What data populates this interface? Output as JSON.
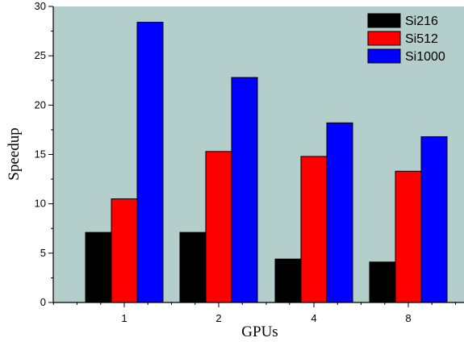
{
  "chart_data": {
    "type": "bar",
    "title": "",
    "xlabel": "GPUs",
    "ylabel": "Speedup",
    "categories": [
      "1",
      "2",
      "4",
      "8"
    ],
    "ylim": [
      0,
      30
    ],
    "yticks": [
      "0",
      "5",
      "10",
      "15",
      "20",
      "25",
      "30"
    ],
    "grid": false,
    "legend_position": "top-right",
    "plot_background": "#b3cecb",
    "series": [
      {
        "name": "Si216",
        "color": "#000000",
        "values": [
          7.1,
          7.1,
          4.4,
          4.1
        ]
      },
      {
        "name": "Si512",
        "color": "#ff0000",
        "values": [
          10.5,
          15.3,
          14.8,
          13.3
        ]
      },
      {
        "name": "Si1000",
        "color": "#0000ff",
        "values": [
          28.4,
          22.8,
          18.2,
          16.8
        ]
      }
    ]
  }
}
